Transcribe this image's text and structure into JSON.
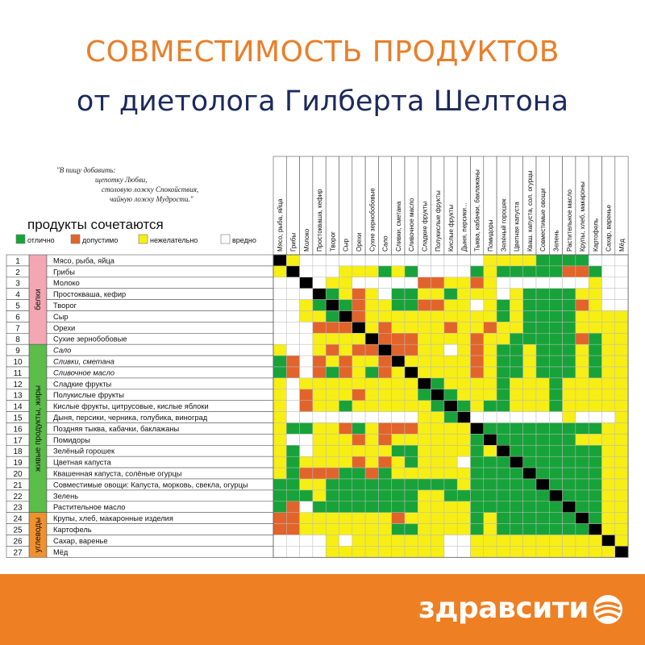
{
  "header": {
    "title": "СОВМЕСТИМОСТЬ ПРОДУКТОВ",
    "subtitle": "от диетолога Гилберта Шелтона"
  },
  "footer": {
    "brand": "здравсити"
  },
  "colors": {
    "good": "#17a339",
    "ok": "#e2642a",
    "bad": "#f7ee14",
    "worst": "#ffffff",
    "diag": "#000000",
    "belki": "#f2a7b3",
    "zhiry": "#5cbd4a",
    "uglevody": "#f0912e",
    "title": "#e87f2a",
    "subtitle": "#1c2a5c",
    "footer": "#ee7f23"
  },
  "chart_data": {
    "type": "heatmap",
    "quote": [
      "\"В пищу добавить:",
      "щепотку Любви,",
      "столовую ложку Спокойствия,",
      "чайную ложку Мудрости.\""
    ],
    "legend_title": "продукты сочетаются",
    "legend": [
      {
        "key": "G",
        "label": "отлично"
      },
      {
        "key": "O",
        "label": "допустимо"
      },
      {
        "key": "Y",
        "label": "нежелательно"
      },
      {
        "key": "W",
        "label": "вредно"
      }
    ],
    "groups": [
      {
        "name": "белки",
        "from": 1,
        "to": 8,
        "color": "belki"
      },
      {
        "name": "живые продукты, жиры",
        "from": 9,
        "to": 23,
        "color": "zhiry"
      },
      {
        "name": "углеводы",
        "from": 24,
        "to": 27,
        "color": "uglevody"
      }
    ],
    "rows": [
      "Мясо, рыба, яйца",
      "Грибы",
      "Молоко",
      "Простокваша, кефир",
      "Творог",
      "Сыр",
      "Орехи",
      "Сухие зернобобовые",
      "Сало",
      "Сливки, сметана",
      "Сливочное масло",
      "Сладкие фрукты",
      "Полукислые фрукты",
      "Кислые фрукты, цитрусовые, кислые яблоки",
      "Дыня, персики, черника, голубика, виноград",
      "Поздняя тыква, кабачки, баклажаны",
      "Помидоры",
      "Зелёный горошек",
      "Цветная капуста",
      "Квашенная капуста, солёные огурцы",
      "Совместимые овощи: Капуста, морковь, свекла, огурцы",
      "Зелень",
      "Растительное масло",
      "Крупы, хлеб, макаронные изделия",
      "Картофель",
      "Сахар, варенье",
      "Мёд"
    ],
    "columns": [
      "Мясо, рыба, яйца",
      "Грибы",
      "Молоко",
      "Простокваша, кефир",
      "Творог",
      "Сыр",
      "Орехи",
      "Сухие зернобобовые",
      "Сало",
      "Сливки, сметана",
      "Сливочное масло",
      "Сладкие фрукты",
      "Полукислые фрукты",
      "Кислые фрукты",
      "Дыня, персики...",
      "Тыква, кабачки, баклажаны",
      "Помидоры",
      "Зелёный горошек",
      "Цветная капуста",
      "Кваш. капуста, сол. огурцы",
      "Совместимые овощи",
      "Зелень",
      "Растительное масло",
      "Крупы, хлеб, макароны",
      "Картофель",
      "Сахар, варенье",
      "Мёд"
    ],
    "italic_rows": [
      9,
      10,
      11
    ],
    "matrix": [
      "DYWWWWWWWWWWWWWWYYYYGGGGWWW",
      "YDWWWYYYGYGWWWWGYGGGGGOOGWW",
      "WWDWYYWWWWWOOYYOYWWWWWWWYWW",
      "WWWDGYOYWGGYYGYYYWYGGGGYYWW",
      "WWYGDGOYYGGOOYYWYGYGGGGOYWW",
      "WWYYGDOYYYYYYYYYYGYGGGGYYYY",
      "WWWOOODYOYYYYOYYOYYGGGGYYYY",
      "WWWYYYYDOOOYYYYOYYGGGGGOGYY",
      "YWWYOYOODOOYYWYOYGGYGGGYGYY",
      "GOWOYOYYODYYYYYOYGGYGGGYGYY",
      "GOWOGOYGOYDYYYYOYGGYGGGYGYY",
      "YWYYYYYYYYYDGYYYYGYYYGYYYYY",
      "YWOYYYOYYYYGDGYYYGYYYGYYYYY",
      "YWOYYGYYYYYYGDGYGGYYYGYYYYY",
      "YWWWWWWWWWWYYGDWWWWWWWYWWWY",
      "YGGYYOGYOOOYYYYDGGGGGGGGGYY",
      "YWWYYYOYOYYYYYYGDGGGGGGYYYY",
      "YGWYYYYYYGGYYYYGYDGGGGGGGYY",
      "YGYYYYOYOYGYYYWGGGDGGGGGGYY",
      "YGOOOGGOGYYYYYYGGGGDGGGGGYY",
      "GGYYGGGGGGGGGGYGGGGGDGGGGYY",
      "GGGYGGGGGGGYYGGGGGGGGDGGGYY",
      "GOWGGGGGGGGYYYYGGGGGGGDGGYY",
      "OOYYYYYYYOYYYYYGYGGGGGGDGYY",
      "OOYYYYYYYGGYYYYGYGGGGGGGDYY",
      "WWWWYWYYYYYYYWWYYYYYYYYYYDY",
      "WWWWYYYYYYYYYWWYYYYYYYYYYYD"
    ]
  }
}
